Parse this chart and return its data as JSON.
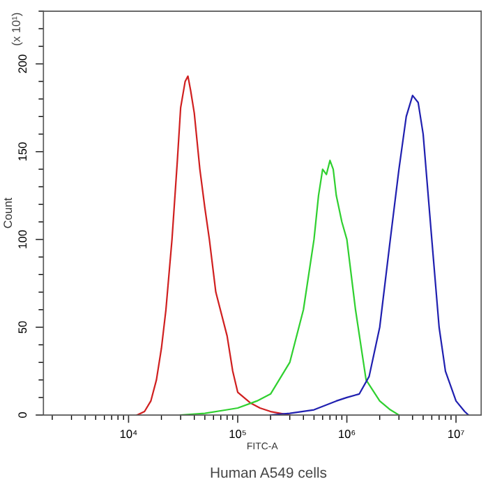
{
  "chart_data": {
    "type": "line",
    "xlabel": "FITC-A",
    "ylabel": "Count",
    "log": "x",
    "grid": false,
    "marker": "none",
    "line_style": "solid",
    "xlim": [
      1660,
      17000000
    ],
    "ylim": [
      0,
      230
    ],
    "xticks": [
      {
        "value": 10000,
        "label": "10⁴"
      },
      {
        "value": 100000,
        "label": "10⁵"
      },
      {
        "value": 1000000,
        "label": "10⁶"
      },
      {
        "value": 10000000,
        "label": "10⁷"
      }
    ],
    "yticks": [
      0,
      50,
      100,
      150,
      200
    ],
    "annotations": [
      "(x 10¹)",
      "Human A549 cells"
    ],
    "series": [
      {
        "color": "#d02020",
        "x": [
          12000,
          14000,
          16000,
          18000,
          20000,
          22000,
          25000,
          28000,
          30000,
          33000,
          35000,
          37000,
          40000,
          45000,
          50000,
          55000,
          63000,
          80000,
          90000,
          100000,
          130000,
          160000,
          200000,
          300000
        ],
        "values": [
          0,
          2,
          8,
          20,
          38,
          60,
          100,
          145,
          175,
          190,
          193,
          185,
          172,
          140,
          118,
          100,
          70,
          45,
          25,
          13,
          7,
          4,
          2,
          0
        ]
      },
      {
        "color": "#30d030",
        "x": [
          30000,
          50000,
          80000,
          100000,
          150000,
          200000,
          300000,
          400000,
          500000,
          550000,
          600000,
          650000,
          700000,
          750000,
          800000,
          900000,
          1000000,
          1200000,
          1500000,
          2000000,
          2500000,
          3000000
        ],
        "values": [
          0,
          1,
          3,
          4,
          8,
          12,
          30,
          60,
          100,
          125,
          140,
          137,
          145,
          140,
          125,
          110,
          100,
          60,
          20,
          8,
          3,
          0
        ]
      },
      {
        "color": "#2020b0",
        "x": [
          200000,
          300000,
          500000,
          800000,
          1000000,
          1300000,
          1600000,
          2000000,
          2500000,
          3000000,
          3500000,
          4000000,
          4500000,
          5000000,
          6000000,
          7000000,
          8000000,
          10000000,
          12000000,
          13000000
        ],
        "values": [
          0,
          1,
          3,
          8,
          10,
          12,
          22,
          50,
          100,
          140,
          170,
          182,
          178,
          160,
          100,
          50,
          25,
          8,
          2,
          0
        ]
      }
    ]
  }
}
